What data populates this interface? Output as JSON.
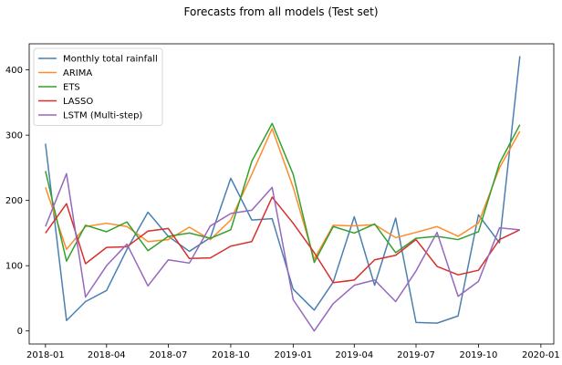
{
  "chart_data": {
    "type": "line",
    "title": "Forecasts from all models (Test set)",
    "xlabel": "",
    "ylabel": "",
    "x": [
      "2018-01",
      "2018-02",
      "2018-03",
      "2018-04",
      "2018-05",
      "2018-06",
      "2018-07",
      "2018-08",
      "2018-09",
      "2018-10",
      "2018-11",
      "2018-12",
      "2019-01",
      "2019-02",
      "2019-03",
      "2019-04",
      "2019-05",
      "2019-06",
      "2019-07",
      "2019-08",
      "2019-09",
      "2019-10",
      "2019-11",
      "2019-12"
    ],
    "xlim": [
      "2017-12-08",
      "2020-01-20"
    ],
    "ylim": [
      -20,
      440
    ],
    "x_ticks": [
      {
        "date": "2018-01-01",
        "label": "2018-01"
      },
      {
        "date": "2018-04-01",
        "label": "2018-04"
      },
      {
        "date": "2018-07-01",
        "label": "2018-07"
      },
      {
        "date": "2018-10-01",
        "label": "2018-10"
      },
      {
        "date": "2019-01-01",
        "label": "2019-01"
      },
      {
        "date": "2019-04-01",
        "label": "2019-04"
      },
      {
        "date": "2019-07-01",
        "label": "2019-07"
      },
      {
        "date": "2019-10-01",
        "label": "2019-10"
      },
      {
        "date": "2020-01-01",
        "label": "2020-01"
      }
    ],
    "y_ticks": [
      0,
      100,
      200,
      300,
      400
    ],
    "grid": false,
    "legend_position": "top-left",
    "series": [
      {
        "name": "Monthly total rainfall",
        "color": "#4a80b1",
        "values": [
          287,
          16,
          45,
          62,
          125,
          182,
          145,
          122,
          143,
          234,
          170,
          172,
          64,
          32,
          75,
          175,
          70,
          173,
          13,
          12,
          23,
          178,
          135,
          421
        ]
      },
      {
        "name": "ARIMA",
        "color": "#ff8b2a",
        "values": [
          220,
          125,
          160,
          165,
          160,
          137,
          140,
          159,
          140,
          170,
          240,
          310,
          220,
          110,
          162,
          161,
          163,
          143,
          151,
          160,
          145,
          165,
          250,
          306
        ]
      },
      {
        "name": "ETS",
        "color": "#35a02e",
        "values": [
          245,
          107,
          162,
          152,
          167,
          123,
          145,
          150,
          142,
          155,
          260,
          318,
          240,
          105,
          160,
          150,
          164,
          120,
          142,
          145,
          140,
          152,
          257,
          316
        ]
      },
      {
        "name": "LASSO",
        "color": "#d7302c",
        "values": [
          150,
          195,
          103,
          128,
          129,
          153,
          157,
          111,
          112,
          130,
          137,
          205,
          165,
          120,
          74,
          78,
          109,
          116,
          140,
          99,
          86,
          93,
          140,
          155
        ]
      },
      {
        "name": "LSTM (Multi-step)",
        "color": "#9568bd",
        "values": [
          160,
          241,
          52,
          100,
          133,
          69,
          109,
          104,
          161,
          180,
          185,
          220,
          48,
          0,
          42,
          70,
          78,
          45,
          92,
          151,
          53,
          76,
          158,
          155
        ]
      }
    ]
  }
}
